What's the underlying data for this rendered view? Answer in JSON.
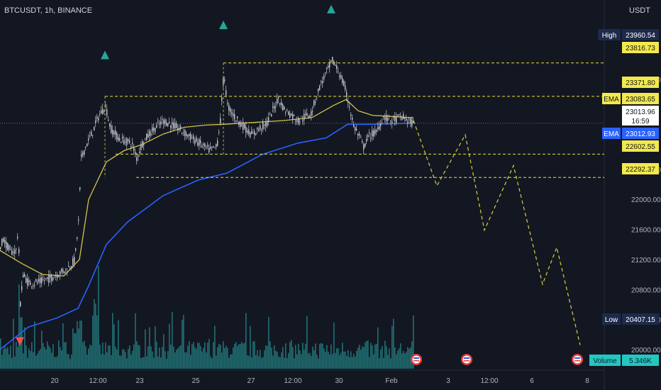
{
  "header": {
    "symbol": "BTCUSDT, 1h, BINANCE",
    "currency": "USDT"
  },
  "colors": {
    "background": "#131722",
    "candle": "#c4c7cf",
    "ema_fast": "#d4c34a",
    "ema_slow": "#2962ff",
    "level_line": "#e8e23a",
    "projection": "#d8d03a",
    "marker_up": "#26a69a",
    "marker_down": "#ef5350",
    "volume": "#1f6f73",
    "tag_yellow": "#f3e94a",
    "tag_navy": "#1e2a4a",
    "tag_blue": "#2962ff",
    "tag_teal": "#22c7c2"
  },
  "chart_data": {
    "type": "candlestick",
    "title": "BTCUSDT, 1h, BINANCE",
    "ylabel": "USDT",
    "ylim": [
      19920,
      24400
    ],
    "y_ticks": [
      20000,
      20400,
      20800,
      21200,
      21600,
      22000,
      22400,
      23600
    ],
    "y_tick_labels": [
      "20000.00",
      "20400.00",
      "20800.00",
      "21200.00",
      "21600.00",
      "22000.00",
      "22400.00",
      "23600.00"
    ],
    "x_tick_labels": [
      "20",
      "12:00",
      "23",
      "25",
      "27",
      "12:00",
      "30",
      "Feb",
      "3",
      "12:00",
      "6",
      "8"
    ],
    "price_path": [
      [
        0,
        21350
      ],
      [
        3,
        21480
      ],
      [
        8,
        21400
      ],
      [
        14,
        21300
      ],
      [
        22,
        21320
      ],
      [
        25,
        21620
      ],
      [
        28,
        20620
      ],
      [
        32,
        21000
      ],
      [
        40,
        20880
      ],
      [
        55,
        20900
      ],
      [
        70,
        20950
      ],
      [
        95,
        21080
      ],
      [
        105,
        21200
      ],
      [
        110,
        21700
      ],
      [
        114,
        22550
      ],
      [
        120,
        22700
      ],
      [
        130,
        22900
      ],
      [
        138,
        23100
      ],
      [
        148,
        23250
      ],
      [
        155,
        22950
      ],
      [
        168,
        22800
      ],
      [
        185,
        22750
      ],
      [
        192,
        22550
      ],
      [
        200,
        22750
      ],
      [
        212,
        22900
      ],
      [
        230,
        23050
      ],
      [
        250,
        22950
      ],
      [
        265,
        22850
      ],
      [
        280,
        22750
      ],
      [
        295,
        22650
      ],
      [
        305,
        22700
      ],
      [
        310,
        23050
      ],
      [
        315,
        23700
      ],
      [
        320,
        23250
      ],
      [
        330,
        23100
      ],
      [
        345,
        22950
      ],
      [
        355,
        22850
      ],
      [
        365,
        22950
      ],
      [
        375,
        23000
      ],
      [
        392,
        23350
      ],
      [
        400,
        23200
      ],
      [
        420,
        23050
      ],
      [
        438,
        23150
      ],
      [
        450,
        23500
      ],
      [
        460,
        23700
      ],
      [
        468,
        23850
      ],
      [
        477,
        23700
      ],
      [
        485,
        23500
      ],
      [
        492,
        23250
      ],
      [
        497,
        23000
      ],
      [
        505,
        22850
      ],
      [
        512,
        22700
      ],
      [
        520,
        22850
      ],
      [
        530,
        22900
      ],
      [
        540,
        23100
      ],
      [
        552,
        23050
      ],
      [
        565,
        23100
      ],
      [
        575,
        23050
      ],
      [
        582,
        23000
      ]
    ],
    "ema_fast": [
      [
        0,
        21320
      ],
      [
        30,
        21150
      ],
      [
        60,
        21000
      ],
      [
        90,
        20980
      ],
      [
        112,
        21200
      ],
      [
        125,
        22000
      ],
      [
        150,
        22500
      ],
      [
        175,
        22650
      ],
      [
        200,
        22730
      ],
      [
        230,
        22870
      ],
      [
        260,
        22960
      ],
      [
        290,
        22990
      ],
      [
        315,
        23000
      ],
      [
        350,
        23020
      ],
      [
        400,
        23050
      ],
      [
        440,
        23090
      ],
      [
        470,
        23250
      ],
      [
        488,
        23330
      ],
      [
        505,
        23180
      ],
      [
        525,
        23120
      ],
      [
        560,
        23100
      ],
      [
        582,
        23084
      ]
    ],
    "ema_slow": [
      [
        0,
        20000
      ],
      [
        40,
        20300
      ],
      [
        80,
        20420
      ],
      [
        110,
        20550
      ],
      [
        125,
        20850
      ],
      [
        150,
        21400
      ],
      [
        180,
        21700
      ],
      [
        230,
        22050
      ],
      [
        280,
        22260
      ],
      [
        320,
        22350
      ],
      [
        370,
        22600
      ],
      [
        420,
        22750
      ],
      [
        460,
        22820
      ],
      [
        490,
        23000
      ],
      [
        520,
        23000
      ],
      [
        560,
        23010
      ],
      [
        582,
        23013
      ]
    ],
    "levels": [
      {
        "value": 23816.73,
        "label": "23816.73",
        "from_x": 315
      },
      {
        "value": 23371.8,
        "label": "23371.80",
        "from_x": 148
      },
      {
        "value": 22602.55,
        "label": "22602.55",
        "from_x": 163
      },
      {
        "value": 22292.37,
        "label": "22292.37",
        "from_x": 192
      }
    ],
    "last_price": 23013.96,
    "projection": [
      [
        583,
        23050
      ],
      [
        616,
        22180
      ],
      [
        656,
        22860
      ],
      [
        683,
        21590
      ],
      [
        724,
        22450
      ],
      [
        765,
        20870
      ],
      [
        785,
        21360
      ],
      [
        818,
        20060
      ]
    ],
    "arrows_up": [
      {
        "x": 148,
        "value": 23980
      },
      {
        "x": 315,
        "value": 24380
      },
      {
        "x": 467,
        "value": 24590
      }
    ],
    "arrows_down": [
      {
        "x": 28,
        "value": 20090
      }
    ],
    "events": [
      587,
      658,
      814
    ],
    "volume": {
      "last": "5.346K"
    },
    "price_tags": {
      "high_label": "High",
      "high_value": "23960.54",
      "ema_fast_label": "EMA",
      "ema_fast_value": "23083.65",
      "last_value": "23013.96",
      "countdown": "16:59",
      "ema_slow_label": "EMA",
      "ema_slow_value": "23012.93",
      "low_label": "Low",
      "low_value": "20407.15",
      "volume_label": "Volume",
      "volume_value": "5.346K"
    }
  }
}
